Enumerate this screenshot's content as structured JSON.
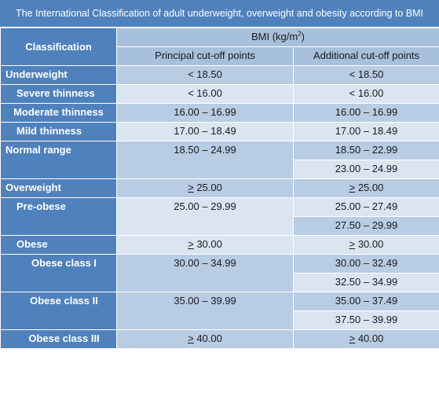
{
  "title": "The International Classification of adult underweight, overweight and obesity according to BMI",
  "header": {
    "classification": "Classification",
    "bmi_prefix": "BMI (kg/m",
    "bmi_sup": "2",
    "bmi_suffix": ")",
    "principal": "Principal cut-off points",
    "additional": "Additional cut-off points"
  },
  "rows": {
    "underweight": {
      "label": "Underweight",
      "principal": "< 18.50",
      "additional": "< 18.50"
    },
    "severe": {
      "label": "Severe thinness",
      "principal": "< 16.00",
      "additional": "< 16.00"
    },
    "moderate": {
      "label": "Moderate thinness",
      "principal": "16.00 – 16.99",
      "additional": "16.00 – 16.99"
    },
    "mild": {
      "label": "Mild thinness",
      "principal": "17.00 – 18.49",
      "additional": "17.00 – 18.49"
    },
    "normal": {
      "label": "Normal range",
      "principal": "18.50 – 24.99",
      "additional": [
        "18.50 – 22.99",
        "23.00 – 24.99"
      ]
    },
    "overweight": {
      "label": "Overweight",
      "principal_sym": ">",
      "principal_val": " 25.00",
      "additional_sym": ">",
      "additional_val": " 25.00"
    },
    "preobese": {
      "label": "Pre-obese",
      "principal": "25.00 – 29.99",
      "additional": [
        "25.00 – 27.49",
        "27.50 – 29.99"
      ]
    },
    "obese": {
      "label": "Obese",
      "principal_sym": ">",
      "principal_val": " 30.00",
      "additional_sym": ">",
      "additional_val": " 30.00"
    },
    "obese1": {
      "label": "Obese class I",
      "principal": "30.00 – 34.99",
      "additional": [
        "30.00 – 32.49",
        "32.50 – 34.99"
      ]
    },
    "obese2": {
      "label": "Obese class II",
      "principal": "35.00 – 39.99",
      "additional": [
        "35.00 – 37.49",
        "37.50 – 39.99"
      ]
    },
    "obese3": {
      "label": "Obese class III",
      "principal_sym": ">",
      "principal_val": " 40.00",
      "additional_sym": ">",
      "additional_val": " 40.00"
    }
  },
  "colors": {
    "header_blue": "#4f81bd",
    "row_dark": "#b8cce4",
    "row_light": "#dbe5f1"
  }
}
